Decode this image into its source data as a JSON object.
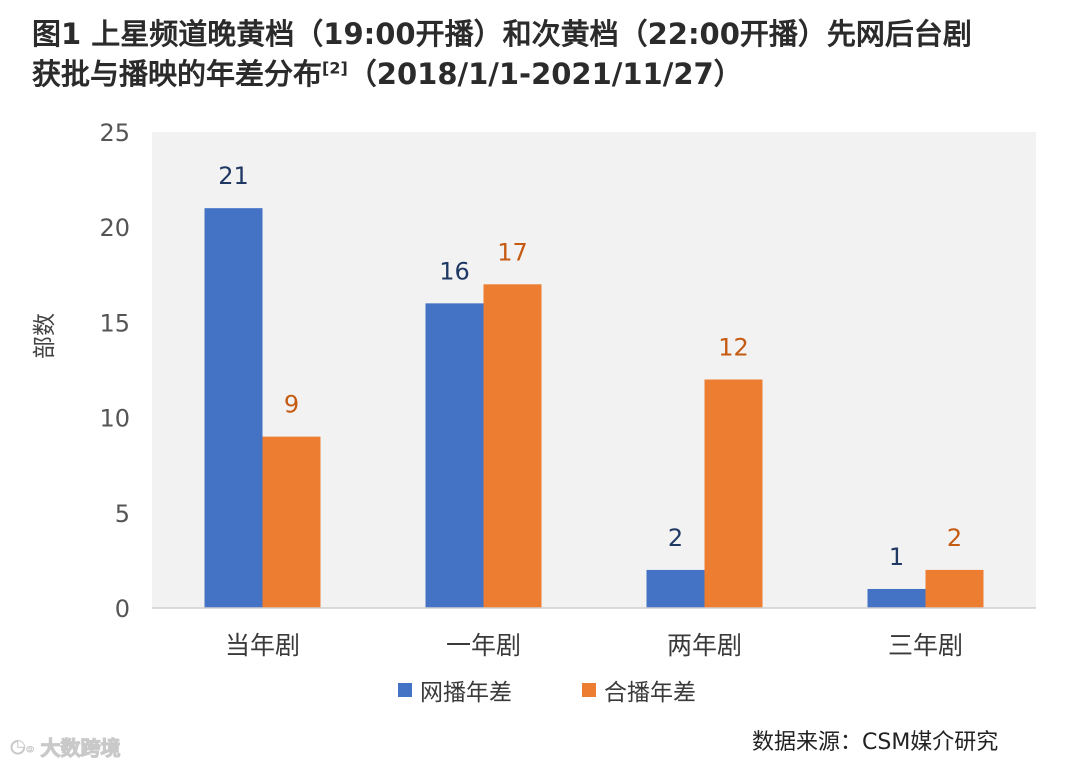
{
  "title": {
    "line1": "图1 上星频道晚黄档（19:00开播）和次黄档（22:00开播）先网后台剧",
    "line2_pre": "获批与播映的年差分布",
    "ref": "[2]",
    "line2_post": "（2018/1/1-2021/11/27）"
  },
  "chart_data": {
    "type": "bar",
    "categories": [
      "当年剧",
      "一年剧",
      "两年剧",
      "三年剧"
    ],
    "series": [
      {
        "name": "网播年差",
        "values": [
          21,
          16,
          2,
          1
        ],
        "color": "#4472C4",
        "label_color": "#1F3864"
      },
      {
        "name": "合播年差",
        "values": [
          9,
          17,
          12,
          2
        ],
        "color": "#ED7D31",
        "label_color": "#C55A11"
      }
    ],
    "ylabel": "部数",
    "ylim": [
      0,
      25
    ],
    "yticks": [
      0,
      5,
      10,
      15,
      20,
      25
    ],
    "grid": false,
    "legend": "bottom",
    "plot_background": "#F2F2F2"
  },
  "source": "数据来源：CSM媒介研究",
  "watermark": {
    "logo_icon": "weibo-icon",
    "text": "大数跨境"
  }
}
